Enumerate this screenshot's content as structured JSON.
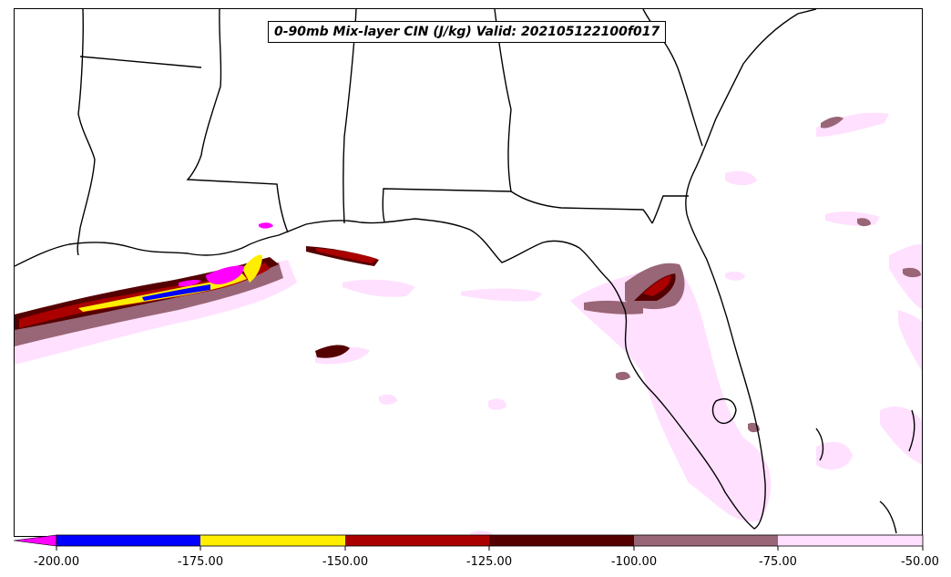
{
  "title": "0-90mb Mix-layer CIN (J/kg) Valid: 202105122100f017",
  "colorbar": {
    "ticks": [
      "-200.00",
      "-175.00",
      "-150.00",
      "-125.00",
      "-100.00",
      "-75.00",
      "-50.00"
    ],
    "colors": {
      "below_min": "#ff00ff",
      "band_200_175": "#0000ff",
      "band_175_150": "#ffee00",
      "band_150_125": "#aa0000",
      "band_125_100": "#550000",
      "band_100_75": "#996677",
      "band_75_50": "#ffe0ff"
    }
  },
  "map": {
    "land_color": "#ffffff",
    "border_color": "#000000"
  }
}
